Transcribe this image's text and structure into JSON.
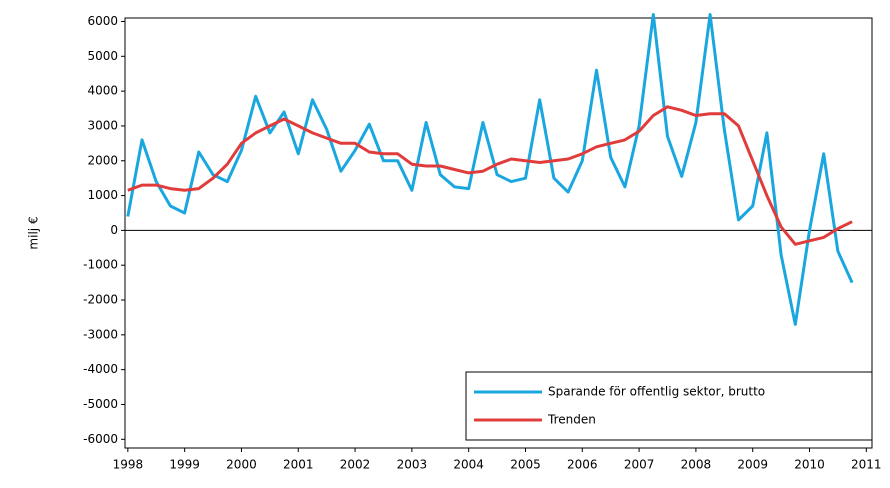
{
  "chart_data": {
    "type": "line",
    "y_label": "milj €",
    "x": [
      1998,
      1998.25,
      1998.5,
      1998.75,
      1999,
      1999.25,
      1999.5,
      1999.75,
      2000,
      2000.25,
      2000.5,
      2000.75,
      2001,
      2001.25,
      2001.5,
      2001.75,
      2002,
      2002.25,
      2002.5,
      2002.75,
      2003,
      2003.25,
      2003.5,
      2003.75,
      2004,
      2004.25,
      2004.5,
      2004.75,
      2005,
      2005.25,
      2005.5,
      2005.75,
      2006,
      2006.25,
      2006.5,
      2006.75,
      2007,
      2007.25,
      2007.5,
      2007.75,
      2008,
      2008.25,
      2008.5,
      2008.75,
      2009,
      2009.25,
      2009.5,
      2009.75,
      2010,
      2010.25,
      2010.5,
      2010.75
    ],
    "series": [
      {
        "name": "Sparande för offentlig sektor, brutto",
        "color": "#1aa7e0",
        "values": [
          400,
          2600,
          1400,
          700,
          500,
          2250,
          1600,
          1400,
          2300,
          3850,
          2800,
          3400,
          2200,
          3750,
          2900,
          1700,
          2300,
          3050,
          2000,
          2000,
          1150,
          3100,
          1600,
          1250,
          1200,
          3100,
          1600,
          1400,
          1500,
          3750,
          1500,
          1100,
          2000,
          4600,
          2100,
          1250,
          3000,
          6200,
          2700,
          1550,
          3100,
          6200,
          2900,
          300,
          700,
          2800,
          -700,
          -2700,
          0,
          2200,
          -600,
          -1500
        ]
      },
      {
        "name": "Trenden",
        "color": "#e03c3c",
        "values": [
          1150,
          1300,
          1300,
          1200,
          1150,
          1200,
          1500,
          1900,
          2500,
          2800,
          3000,
          3200,
          3000,
          2800,
          2650,
          2500,
          2500,
          2250,
          2200,
          2200,
          1900,
          1850,
          1850,
          1750,
          1650,
          1700,
          1900,
          2050,
          2000,
          1950,
          2000,
          2050,
          2200,
          2400,
          2500,
          2600,
          2850,
          3300,
          3550,
          3450,
          3300,
          3350,
          3350,
          3000,
          2000,
          1000,
          100,
          -400,
          -300,
          -200,
          50,
          250
        ]
      }
    ],
    "xlim": [
      1997.95,
      2011.1
    ],
    "xticks": [
      1998,
      1999,
      2000,
      2001,
      2002,
      2003,
      2004,
      2005,
      2006,
      2007,
      2008,
      2009,
      2010,
      2011
    ],
    "ylim": [
      -6250,
      6100
    ],
    "yticks": [
      -6000,
      -5000,
      -4000,
      -3000,
      -2000,
      -1000,
      0,
      1000,
      2000,
      3000,
      4000,
      5000,
      6000
    ],
    "zero_line": true,
    "legend": "lower right"
  }
}
